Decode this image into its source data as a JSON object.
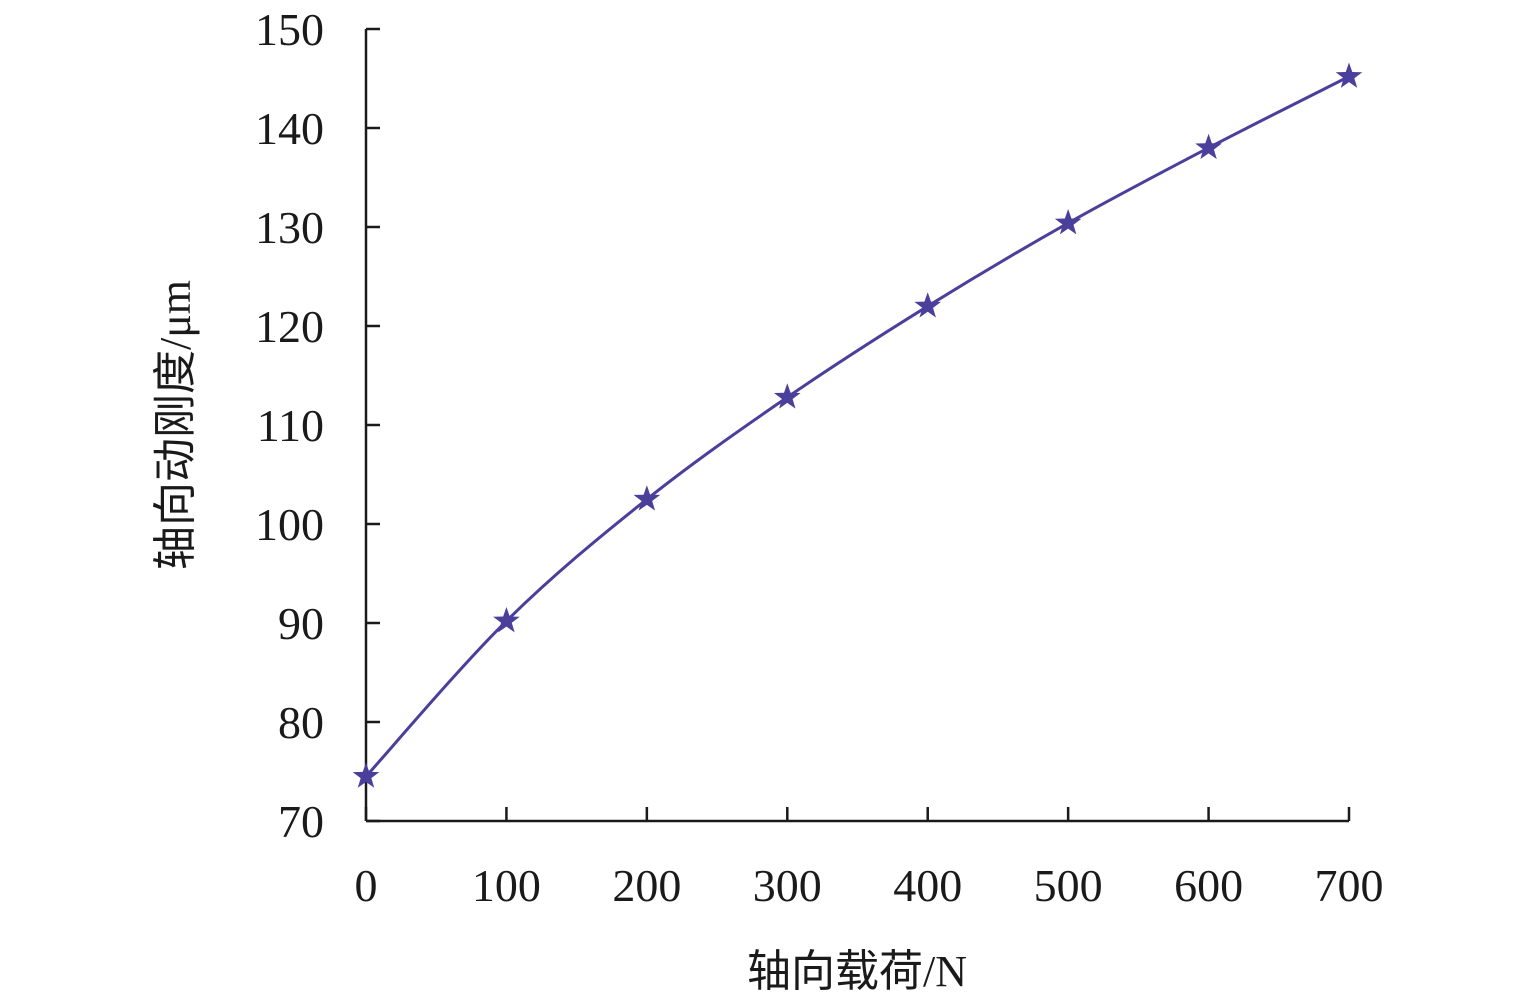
{
  "chart_data": {
    "type": "line",
    "title": "",
    "xlabel": "轴向载荷/N",
    "ylabel": "轴向动刚度/μm",
    "x": [
      0,
      100,
      200,
      300,
      400,
      500,
      600,
      700
    ],
    "series": [
      {
        "values": [
          74.5,
          90.2,
          102.5,
          112.8,
          122.0,
          130.4,
          138.0,
          145.2
        ],
        "color": "#4b3f9c",
        "marker": "star",
        "smooth": true
      }
    ],
    "xlim": [
      0,
      700
    ],
    "ylim": [
      70,
      150
    ],
    "xticks": [
      0,
      100,
      200,
      300,
      400,
      500,
      600,
      700
    ],
    "yticks": [
      70,
      80,
      90,
      100,
      110,
      120,
      130,
      140,
      150
    ],
    "grid": false,
    "legend": "none"
  }
}
